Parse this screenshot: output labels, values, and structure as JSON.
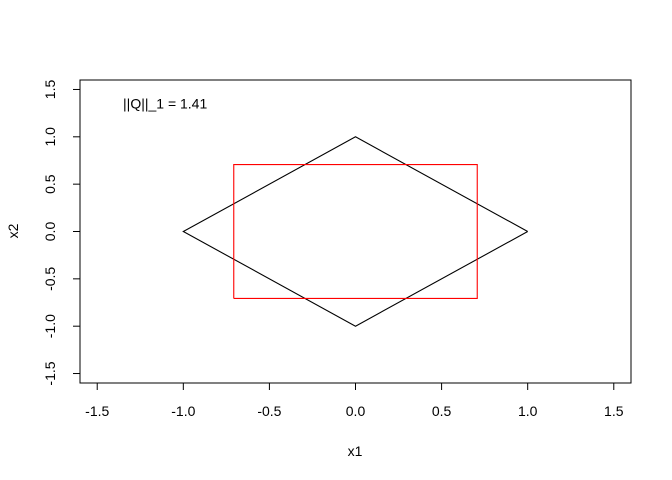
{
  "chart_data": {
    "type": "line",
    "title": "",
    "xlabel": "x1",
    "ylabel": "x2",
    "xlim": [
      -1.6,
      1.6
    ],
    "ylim": [
      -1.6,
      1.6
    ],
    "xticks": [
      -1.5,
      -1.0,
      -0.5,
      0.0,
      0.5,
      1.0,
      1.5
    ],
    "yticks": [
      -1.5,
      -1.0,
      -0.5,
      0.0,
      0.5,
      1.0,
      1.5
    ],
    "tick_labels": [
      "-1.5",
      "-1.0",
      "-0.5",
      "0.0",
      "0.5",
      "1.0",
      "1.5"
    ],
    "grid": false,
    "series": [
      {
        "color": "#000000",
        "x": [
          1,
          0,
          -1,
          0,
          1
        ],
        "y": [
          0,
          1,
          0,
          -1,
          0
        ]
      },
      {
        "color": "#ff0000",
        "x": [
          -0.707,
          0.707,
          0.707,
          -0.707,
          -0.707
        ],
        "y": [
          -0.707,
          -0.707,
          0.707,
          0.707,
          -0.707
        ]
      }
    ],
    "annotations": [
      {
        "text": "||Q||_1 = 1.41",
        "x": -1.35,
        "y": 1.35
      }
    ]
  }
}
